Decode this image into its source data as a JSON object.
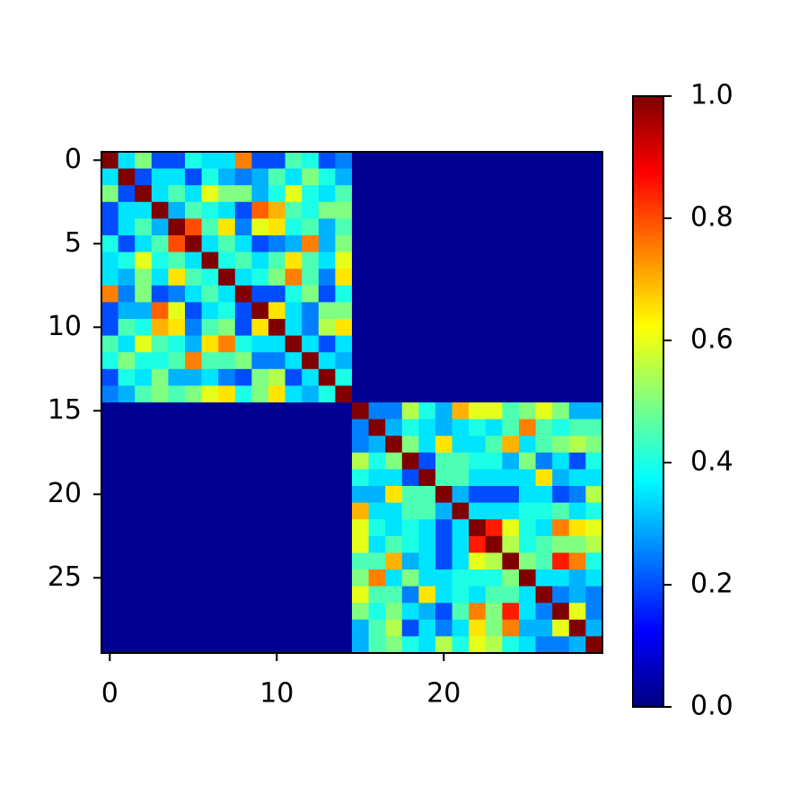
{
  "chart_data": {
    "type": "heatmap",
    "colormap": "jet",
    "xlim": [
      -0.5,
      29.5
    ],
    "ylim": [
      29.5,
      -0.5
    ],
    "xticks": [
      0,
      10,
      20
    ],
    "yticks": [
      0,
      5,
      10,
      15,
      20,
      25
    ],
    "clim": [
      0,
      1
    ],
    "cticks": [
      {
        "value": 0,
        "label": "0.0"
      },
      0.2,
      0.4,
      0.6,
      0.8,
      {
        "value": 1,
        "label": "1.0"
      }
    ],
    "z": [
      [
        1,
        0.35,
        0.5,
        0.2,
        0.2,
        0.4,
        0.35,
        0.35,
        0.75,
        0.2,
        0.2,
        0.45,
        0.4,
        0.2,
        0.25,
        0.02,
        0.02,
        0.02,
        0.02,
        0.02,
        0.02,
        0.02,
        0.02,
        0.02,
        0.02,
        0.02,
        0.02,
        0.02,
        0.02,
        0.02
      ],
      [
        0.35,
        1,
        0.2,
        0.35,
        0.35,
        0.2,
        0.4,
        0.3,
        0.25,
        0.3,
        0.45,
        0.35,
        0.5,
        0.4,
        0.3,
        0.02,
        0.02,
        0.02,
        0.02,
        0.02,
        0.02,
        0.02,
        0.02,
        0.02,
        0.02,
        0.02,
        0.02,
        0.02,
        0.02,
        0.02
      ],
      [
        0.5,
        0.2,
        1,
        0.35,
        0.45,
        0.35,
        0.6,
        0.5,
        0.5,
        0.3,
        0.4,
        0.6,
        0.4,
        0.35,
        0.45,
        0.02,
        0.02,
        0.02,
        0.02,
        0.02,
        0.02,
        0.02,
        0.02,
        0.02,
        0.02,
        0.02,
        0.02,
        0.02,
        0.02,
        0.02
      ],
      [
        0.2,
        0.35,
        0.35,
        1,
        0.3,
        0.45,
        0.4,
        0.35,
        0.2,
        0.78,
        0.7,
        0.45,
        0.4,
        0.5,
        0.5,
        0.02,
        0.02,
        0.02,
        0.02,
        0.02,
        0.02,
        0.02,
        0.02,
        0.02,
        0.02,
        0.02,
        0.02,
        0.02,
        0.02,
        0.02
      ],
      [
        0.2,
        0.35,
        0.45,
        0.3,
        1,
        0.8,
        0.45,
        0.65,
        0.25,
        0.6,
        0.65,
        0.4,
        0.45,
        0.3,
        0.45,
        0.02,
        0.02,
        0.02,
        0.02,
        0.02,
        0.02,
        0.02,
        0.02,
        0.02,
        0.02,
        0.02,
        0.02,
        0.02,
        0.02,
        0.02
      ],
      [
        0.4,
        0.2,
        0.35,
        0.45,
        0.8,
        1,
        0.35,
        0.45,
        0.35,
        0.2,
        0.25,
        0.3,
        0.75,
        0.3,
        0.5,
        0.02,
        0.02,
        0.02,
        0.02,
        0.02,
        0.02,
        0.02,
        0.02,
        0.02,
        0.02,
        0.02,
        0.02,
        0.02,
        0.02,
        0.02
      ],
      [
        0.35,
        0.4,
        0.6,
        0.4,
        0.45,
        0.35,
        1,
        0.4,
        0.45,
        0.35,
        0.45,
        0.65,
        0.45,
        0.35,
        0.6,
        0.02,
        0.02,
        0.02,
        0.02,
        0.02,
        0.02,
        0.02,
        0.02,
        0.02,
        0.02,
        0.02,
        0.02,
        0.02,
        0.02,
        0.02
      ],
      [
        0.35,
        0.3,
        0.5,
        0.35,
        0.65,
        0.45,
        0.4,
        1,
        0.35,
        0.4,
        0.5,
        0.75,
        0.45,
        0.25,
        0.65,
        0.02,
        0.02,
        0.02,
        0.02,
        0.02,
        0.02,
        0.02,
        0.02,
        0.02,
        0.02,
        0.02,
        0.02,
        0.02,
        0.02,
        0.02
      ],
      [
        0.75,
        0.25,
        0.5,
        0.2,
        0.25,
        0.35,
        0.45,
        0.35,
        1,
        0.2,
        0.2,
        0.4,
        0.5,
        0.2,
        0.4,
        0.02,
        0.02,
        0.02,
        0.02,
        0.02,
        0.02,
        0.02,
        0.02,
        0.02,
        0.02,
        0.02,
        0.02,
        0.02,
        0.02,
        0.02
      ],
      [
        0.2,
        0.3,
        0.3,
        0.78,
        0.6,
        0.2,
        0.35,
        0.4,
        0.2,
        1,
        0.65,
        0.35,
        0.25,
        0.5,
        0.5,
        0.02,
        0.02,
        0.02,
        0.02,
        0.02,
        0.02,
        0.02,
        0.02,
        0.02,
        0.02,
        0.02,
        0.02,
        0.02,
        0.02,
        0.02
      ],
      [
        0.2,
        0.45,
        0.4,
        0.7,
        0.65,
        0.25,
        0.45,
        0.5,
        0.2,
        0.65,
        1,
        0.35,
        0.25,
        0.55,
        0.65,
        0.02,
        0.02,
        0.02,
        0.02,
        0.02,
        0.02,
        0.02,
        0.02,
        0.02,
        0.02,
        0.02,
        0.02,
        0.02,
        0.02,
        0.02
      ],
      [
        0.45,
        0.35,
        0.6,
        0.45,
        0.4,
        0.3,
        0.65,
        0.75,
        0.4,
        0.35,
        0.35,
        1,
        0.35,
        0.2,
        0.35,
        0.02,
        0.02,
        0.02,
        0.02,
        0.02,
        0.02,
        0.02,
        0.02,
        0.02,
        0.02,
        0.02,
        0.02,
        0.02,
        0.02,
        0.02
      ],
      [
        0.4,
        0.5,
        0.4,
        0.4,
        0.45,
        0.75,
        0.45,
        0.45,
        0.5,
        0.25,
        0.25,
        0.35,
        1,
        0.35,
        0.3,
        0.02,
        0.02,
        0.02,
        0.02,
        0.02,
        0.02,
        0.02,
        0.02,
        0.02,
        0.02,
        0.02,
        0.02,
        0.02,
        0.02,
        0.02
      ],
      [
        0.2,
        0.4,
        0.35,
        0.5,
        0.3,
        0.3,
        0.35,
        0.25,
        0.2,
        0.5,
        0.55,
        0.2,
        0.35,
        1,
        0.4,
        0.02,
        0.02,
        0.02,
        0.02,
        0.02,
        0.02,
        0.02,
        0.02,
        0.02,
        0.02,
        0.02,
        0.02,
        0.02,
        0.02,
        0.02
      ],
      [
        0.25,
        0.3,
        0.45,
        0.5,
        0.45,
        0.5,
        0.6,
        0.65,
        0.4,
        0.5,
        0.65,
        0.35,
        0.3,
        0.4,
        1,
        0.02,
        0.02,
        0.02,
        0.02,
        0.02,
        0.02,
        0.02,
        0.02,
        0.02,
        0.02,
        0.02,
        0.02,
        0.02,
        0.02,
        0.02
      ],
      [
        0.02,
        0.02,
        0.02,
        0.02,
        0.02,
        0.02,
        0.02,
        0.02,
        0.02,
        0.02,
        0.02,
        0.02,
        0.02,
        0.02,
        0.02,
        1,
        0.25,
        0.25,
        0.55,
        0.4,
        0.3,
        0.7,
        0.6,
        0.6,
        0.45,
        0.5,
        0.6,
        0.5,
        0.3,
        0.3
      ],
      [
        0.02,
        0.02,
        0.02,
        0.02,
        0.02,
        0.02,
        0.02,
        0.02,
        0.02,
        0.02,
        0.02,
        0.02,
        0.02,
        0.02,
        0.02,
        0.25,
        1,
        0.3,
        0.4,
        0.35,
        0.3,
        0.35,
        0.4,
        0.35,
        0.45,
        0.75,
        0.45,
        0.4,
        0.45,
        0.45
      ],
      [
        0.02,
        0.02,
        0.02,
        0.02,
        0.02,
        0.02,
        0.02,
        0.02,
        0.02,
        0.02,
        0.02,
        0.02,
        0.02,
        0.02,
        0.02,
        0.25,
        0.3,
        1,
        0.5,
        0.35,
        0.65,
        0.35,
        0.35,
        0.45,
        0.7,
        0.35,
        0.45,
        0.5,
        0.55,
        0.5
      ],
      [
        0.02,
        0.02,
        0.02,
        0.02,
        0.02,
        0.02,
        0.02,
        0.02,
        0.02,
        0.02,
        0.02,
        0.02,
        0.02,
        0.02,
        0.02,
        0.55,
        0.4,
        0.5,
        1,
        0.2,
        0.45,
        0.45,
        0.4,
        0.4,
        0.3,
        0.5,
        0.25,
        0.35,
        0.2,
        0.4
      ],
      [
        0.02,
        0.02,
        0.02,
        0.02,
        0.02,
        0.02,
        0.02,
        0.02,
        0.02,
        0.02,
        0.02,
        0.02,
        0.02,
        0.02,
        0.02,
        0.4,
        0.35,
        0.35,
        0.2,
        1,
        0.45,
        0.45,
        0.35,
        0.35,
        0.35,
        0.35,
        0.65,
        0.3,
        0.35,
        0.35
      ],
      [
        0.02,
        0.02,
        0.02,
        0.02,
        0.02,
        0.02,
        0.02,
        0.02,
        0.02,
        0.02,
        0.02,
        0.02,
        0.02,
        0.02,
        0.02,
        0.3,
        0.3,
        0.65,
        0.45,
        0.45,
        1,
        0.3,
        0.2,
        0.2,
        0.2,
        0.35,
        0.35,
        0.2,
        0.25,
        0.55
      ],
      [
        0.02,
        0.02,
        0.02,
        0.02,
        0.02,
        0.02,
        0.02,
        0.02,
        0.02,
        0.02,
        0.02,
        0.02,
        0.02,
        0.02,
        0.02,
        0.7,
        0.35,
        0.35,
        0.45,
        0.45,
        0.3,
        1,
        0.35,
        0.35,
        0.35,
        0.4,
        0.4,
        0.45,
        0.35,
        0.4
      ],
      [
        0.02,
        0.02,
        0.02,
        0.02,
        0.02,
        0.02,
        0.02,
        0.02,
        0.02,
        0.02,
        0.02,
        0.02,
        0.02,
        0.02,
        0.02,
        0.6,
        0.4,
        0.35,
        0.4,
        0.35,
        0.2,
        0.35,
        1,
        0.85,
        0.6,
        0.4,
        0.35,
        0.75,
        0.65,
        0.6
      ],
      [
        0.02,
        0.02,
        0.02,
        0.02,
        0.02,
        0.02,
        0.02,
        0.02,
        0.02,
        0.02,
        0.02,
        0.02,
        0.02,
        0.02,
        0.02,
        0.6,
        0.35,
        0.45,
        0.4,
        0.35,
        0.2,
        0.35,
        0.85,
        1,
        0.55,
        0.4,
        0.45,
        0.5,
        0.5,
        0.55
      ],
      [
        0.02,
        0.02,
        0.02,
        0.02,
        0.02,
        0.02,
        0.02,
        0.02,
        0.02,
        0.02,
        0.02,
        0.02,
        0.02,
        0.02,
        0.02,
        0.45,
        0.45,
        0.7,
        0.3,
        0.35,
        0.2,
        0.35,
        0.6,
        0.55,
        1,
        0.5,
        0.45,
        0.85,
        0.75,
        0.4
      ],
      [
        0.02,
        0.02,
        0.02,
        0.02,
        0.02,
        0.02,
        0.02,
        0.02,
        0.02,
        0.02,
        0.02,
        0.02,
        0.02,
        0.02,
        0.02,
        0.5,
        0.75,
        0.35,
        0.5,
        0.35,
        0.35,
        0.4,
        0.4,
        0.4,
        0.5,
        1,
        0.35,
        0.35,
        0.3,
        0.35
      ],
      [
        0.02,
        0.02,
        0.02,
        0.02,
        0.02,
        0.02,
        0.02,
        0.02,
        0.02,
        0.02,
        0.02,
        0.02,
        0.02,
        0.02,
        0.02,
        0.6,
        0.45,
        0.45,
        0.25,
        0.65,
        0.35,
        0.4,
        0.35,
        0.45,
        0.45,
        0.35,
        1,
        0.25,
        0.3,
        0.25
      ],
      [
        0.02,
        0.02,
        0.02,
        0.02,
        0.02,
        0.02,
        0.02,
        0.02,
        0.02,
        0.02,
        0.02,
        0.02,
        0.02,
        0.02,
        0.02,
        0.5,
        0.4,
        0.5,
        0.35,
        0.3,
        0.2,
        0.45,
        0.75,
        0.5,
        0.85,
        0.35,
        0.25,
        1,
        0.6,
        0.25
      ],
      [
        0.02,
        0.02,
        0.02,
        0.02,
        0.02,
        0.02,
        0.02,
        0.02,
        0.02,
        0.02,
        0.02,
        0.02,
        0.02,
        0.02,
        0.02,
        0.3,
        0.45,
        0.55,
        0.2,
        0.35,
        0.25,
        0.35,
        0.65,
        0.5,
        0.75,
        0.3,
        0.3,
        0.6,
        1,
        0.3
      ],
      [
        0.02,
        0.02,
        0.02,
        0.02,
        0.02,
        0.02,
        0.02,
        0.02,
        0.02,
        0.02,
        0.02,
        0.02,
        0.02,
        0.02,
        0.02,
        0.3,
        0.45,
        0.5,
        0.4,
        0.35,
        0.55,
        0.4,
        0.6,
        0.55,
        0.4,
        0.35,
        0.25,
        0.25,
        0.3,
        1
      ]
    ]
  }
}
